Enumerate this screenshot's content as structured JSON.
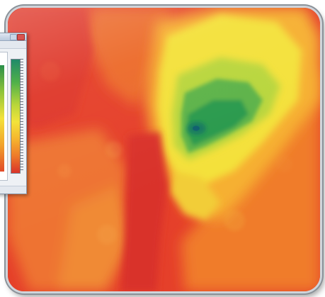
{
  "image": {
    "description_kind": "contour-heatmap",
    "icons": {
      "app_close": "close-icon",
      "app_minimize": "minimize-icon",
      "colorbar": "color-scale-icon"
    },
    "palette": {
      "low": "#e03a28",
      "mid_low": "#f07a2e",
      "mid": "#f5b532",
      "mid_high": "#f3e43a",
      "high": "#7cc04a",
      "peak": "#1c8a4e",
      "core": "#0f6e73"
    }
  }
}
